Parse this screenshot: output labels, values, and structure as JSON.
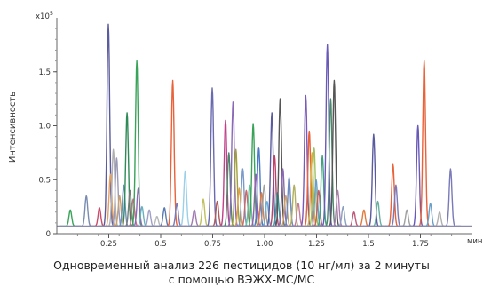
{
  "chart_data": {
    "type": "line",
    "title": "",
    "xlabel": "мин",
    "ylabel": "Интенсивность",
    "y_multiplier": "x10",
    "y_multiplier_exp": "5",
    "xlim": [
      0,
      2.0
    ],
    "ylim": [
      0,
      2.0
    ],
    "x_ticks": [
      {
        "value": 0.25,
        "label": "0.25"
      },
      {
        "value": 0.5,
        "label": "0.5"
      },
      {
        "value": 0.75,
        "label": "0.75"
      },
      {
        "value": 1.0,
        "label": "1.00"
      },
      {
        "value": 1.25,
        "label": "1.25"
      },
      {
        "value": 1.5,
        "label": "1.5"
      },
      {
        "value": 1.75,
        "label": "1.75"
      }
    ],
    "y_ticks": [
      {
        "value": 0,
        "label": "0"
      },
      {
        "value": 0.5,
        "label": "0.5"
      },
      {
        "value": 1.0,
        "label": "1.0"
      },
      {
        "value": 1.5,
        "label": "1.5"
      }
    ],
    "grid": false,
    "legend": "none",
    "baseline": 0.07,
    "series": [
      {
        "x": 0.065,
        "y": 0.22,
        "color": "#3aa35a"
      },
      {
        "x": 0.142,
        "y": 0.35,
        "color": "#7a8db0"
      },
      {
        "x": 0.205,
        "y": 0.24,
        "color": "#c94d6a"
      },
      {
        "x": 0.248,
        "y": 1.94,
        "color": "#5a5a9e"
      },
      {
        "x": 0.258,
        "y": 0.55,
        "color": "#e8a060"
      },
      {
        "x": 0.272,
        "y": 0.78,
        "color": "#b0b0b0"
      },
      {
        "x": 0.288,
        "y": 0.7,
        "color": "#9a9ab8"
      },
      {
        "x": 0.302,
        "y": 0.35,
        "color": "#c8a070"
      },
      {
        "x": 0.322,
        "y": 0.45,
        "color": "#6a8fc0"
      },
      {
        "x": 0.338,
        "y": 1.12,
        "color": "#2e8b57"
      },
      {
        "x": 0.352,
        "y": 0.4,
        "color": "#7a7a7a"
      },
      {
        "x": 0.368,
        "y": 0.32,
        "color": "#d16a8a"
      },
      {
        "x": 0.385,
        "y": 1.6,
        "color": "#3aa35a"
      },
      {
        "x": 0.392,
        "y": 0.42,
        "color": "#8a6ab0"
      },
      {
        "x": 0.41,
        "y": 0.25,
        "color": "#6ab0c0"
      },
      {
        "x": 0.445,
        "y": 0.22,
        "color": "#a0a0c8"
      },
      {
        "x": 0.482,
        "y": 0.16,
        "color": "#b8b8b8"
      },
      {
        "x": 0.518,
        "y": 0.24,
        "color": "#5a7ab0"
      },
      {
        "x": 0.558,
        "y": 1.42,
        "color": "#e8623a"
      },
      {
        "x": 0.578,
        "y": 0.28,
        "color": "#7a7ab8"
      },
      {
        "x": 0.618,
        "y": 0.58,
        "color": "#9ad0e8"
      },
      {
        "x": 0.662,
        "y": 0.22,
        "color": "#a07ab0"
      },
      {
        "x": 0.705,
        "y": 0.32,
        "color": "#c0c060"
      },
      {
        "x": 0.748,
        "y": 1.35,
        "color": "#6a6ab0"
      },
      {
        "x": 0.772,
        "y": 0.3,
        "color": "#b05a5a"
      },
      {
        "x": 0.812,
        "y": 1.05,
        "color": "#c0408a"
      },
      {
        "x": 0.828,
        "y": 0.75,
        "color": "#4a8a6a"
      },
      {
        "x": 0.848,
        "y": 1.22,
        "color": "#8a6ab8"
      },
      {
        "x": 0.862,
        "y": 0.78,
        "color": "#a0a040"
      },
      {
        "x": 0.878,
        "y": 0.42,
        "color": "#e0a040"
      },
      {
        "x": 0.895,
        "y": 0.6,
        "color": "#7a9ac8"
      },
      {
        "x": 0.912,
        "y": 0.4,
        "color": "#c86a6a"
      },
      {
        "x": 0.928,
        "y": 0.45,
        "color": "#6ac0a0"
      },
      {
        "x": 0.945,
        "y": 1.02,
        "color": "#3aa35a"
      },
      {
        "x": 0.958,
        "y": 0.55,
        "color": "#9a5ab0"
      },
      {
        "x": 0.972,
        "y": 0.8,
        "color": "#4a7ac8"
      },
      {
        "x": 0.985,
        "y": 0.38,
        "color": "#e07a40"
      },
      {
        "x": 0.998,
        "y": 0.45,
        "color": "#a0a0a0"
      },
      {
        "x": 1.012,
        "y": 0.3,
        "color": "#6ab0d8"
      },
      {
        "x": 1.035,
        "y": 1.12,
        "color": "#5a5a9e"
      },
      {
        "x": 1.048,
        "y": 0.72,
        "color": "#c0406a"
      },
      {
        "x": 1.062,
        "y": 0.38,
        "color": "#40a0a0"
      },
      {
        "x": 1.075,
        "y": 1.25,
        "color": "#555555"
      },
      {
        "x": 1.088,
        "y": 0.6,
        "color": "#8a6ab0"
      },
      {
        "x": 1.102,
        "y": 0.35,
        "color": "#d0a060"
      },
      {
        "x": 1.118,
        "y": 0.52,
        "color": "#6a8ac0"
      },
      {
        "x": 1.142,
        "y": 0.45,
        "color": "#b0b060"
      },
      {
        "x": 1.162,
        "y": 0.28,
        "color": "#c87a9a"
      },
      {
        "x": 1.198,
        "y": 1.28,
        "color": "#7a5ab8"
      },
      {
        "x": 1.215,
        "y": 0.95,
        "color": "#e8623a"
      },
      {
        "x": 1.228,
        "y": 0.75,
        "color": "#d8b040"
      },
      {
        "x": 1.238,
        "y": 0.8,
        "color": "#a0c060"
      },
      {
        "x": 1.248,
        "y": 0.5,
        "color": "#6aa0c8"
      },
      {
        "x": 1.26,
        "y": 0.4,
        "color": "#c0606a"
      },
      {
        "x": 1.278,
        "y": 0.72,
        "color": "#40a080"
      },
      {
        "x": 1.302,
        "y": 1.75,
        "color": "#6a5ab8"
      },
      {
        "x": 1.318,
        "y": 1.25,
        "color": "#4a8a6a"
      },
      {
        "x": 1.335,
        "y": 1.42,
        "color": "#555555"
      },
      {
        "x": 1.352,
        "y": 0.4,
        "color": "#b07ab0"
      },
      {
        "x": 1.378,
        "y": 0.25,
        "color": "#8aa0c0"
      },
      {
        "x": 1.43,
        "y": 0.2,
        "color": "#c05a7a"
      },
      {
        "x": 1.478,
        "y": 0.22,
        "color": "#e07a40"
      },
      {
        "x": 1.525,
        "y": 0.92,
        "color": "#5a5a9e"
      },
      {
        "x": 1.545,
        "y": 0.3,
        "color": "#6ab0a0"
      },
      {
        "x": 1.618,
        "y": 0.64,
        "color": "#e8623a"
      },
      {
        "x": 1.632,
        "y": 0.45,
        "color": "#7a7ab8"
      },
      {
        "x": 1.685,
        "y": 0.22,
        "color": "#a0a0a0"
      },
      {
        "x": 1.738,
        "y": 1.0,
        "color": "#6a5ab8"
      },
      {
        "x": 1.768,
        "y": 1.6,
        "color": "#e8623a"
      },
      {
        "x": 1.798,
        "y": 0.28,
        "color": "#6aa0c8"
      },
      {
        "x": 1.842,
        "y": 0.2,
        "color": "#b0b0b0"
      },
      {
        "x": 1.895,
        "y": 0.6,
        "color": "#7a7ab8"
      }
    ]
  },
  "caption": {
    "line1": "Одновременный анализ 226 пестицидов (10 нг/мл) за 2 минуты",
    "line2": "с помощью ВЭЖХ-МС/МС"
  }
}
